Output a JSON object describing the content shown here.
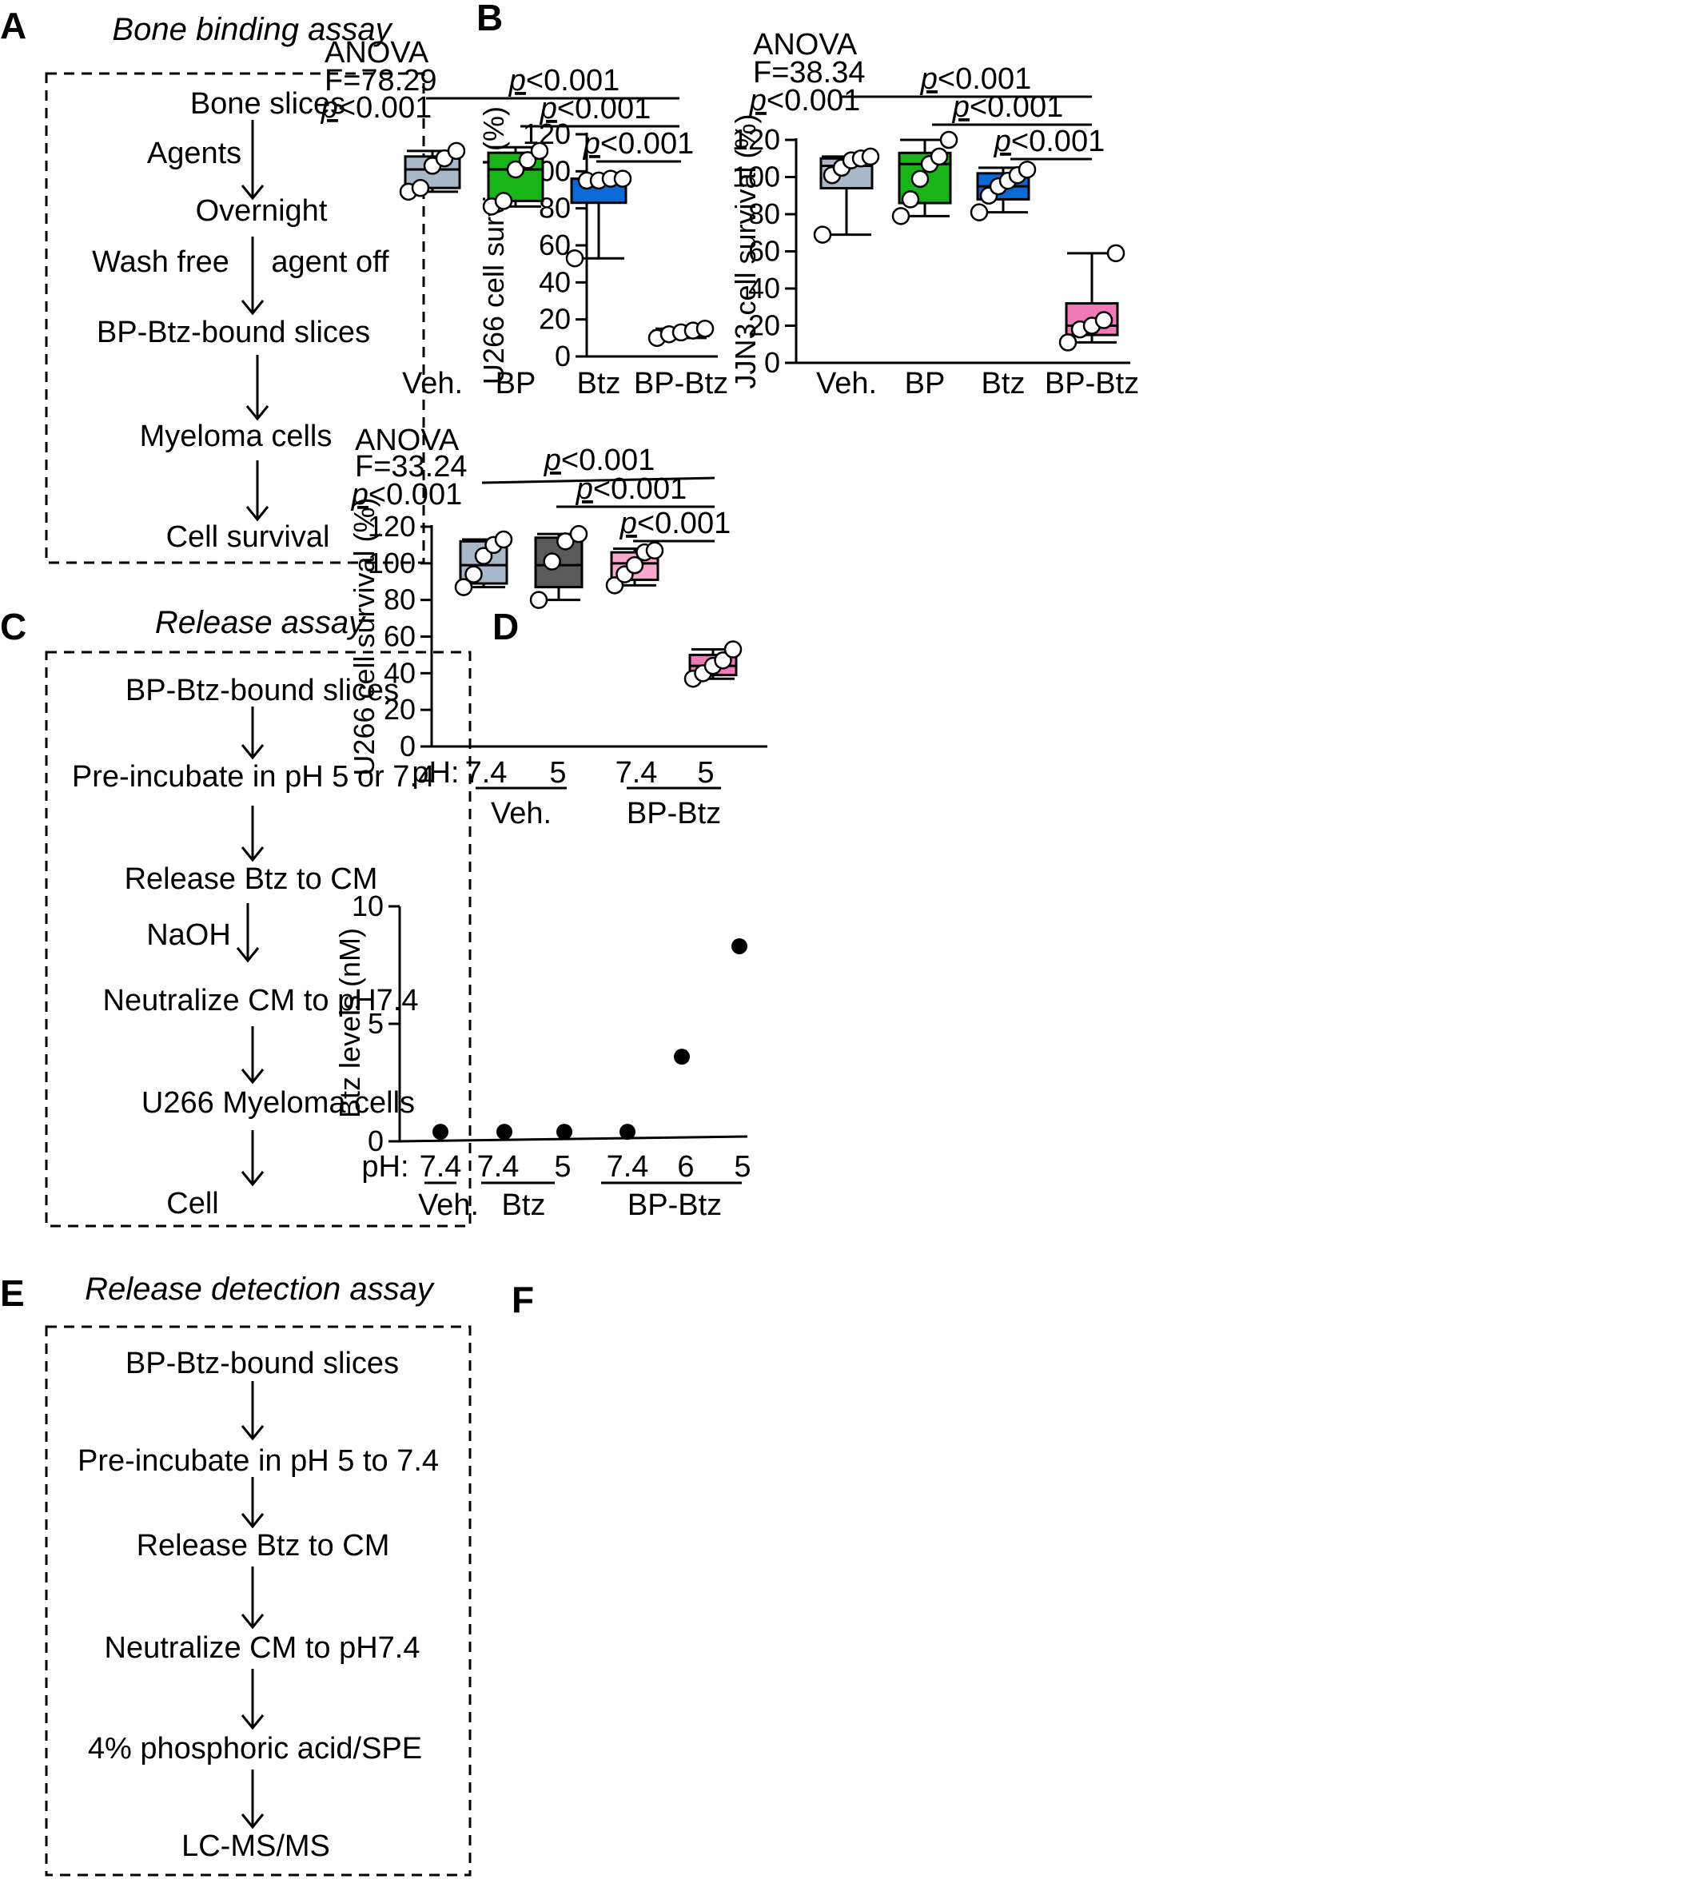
{
  "panels": {
    "A": {
      "letter": "A",
      "title": "Bone binding assay",
      "steps": [
        "Bone slices",
        "Agents",
        "Overnight",
        "Wash free",
        "agent off",
        "BP-Btz-bound slices",
        "Myeloma cells",
        "Cell survival"
      ]
    },
    "C": {
      "letter": "C",
      "title": "Release assay",
      "steps": [
        "BP-Btz-bound slices",
        "Pre-incubate in pH 5 or 7.4",
        "Release Btz to CM",
        "NaOH",
        "Neutralize CM to pH7.4",
        "U266 Myeloma cells",
        "Cell"
      ]
    },
    "E": {
      "letter": "E",
      "title": "Release detection assay",
      "steps": [
        "BP-Btz-bound slices",
        "Pre-incubate in pH 5 to 7.4",
        "Release Btz to CM",
        "Neutralize CM to pH7.4",
        "4% phosphoric acid/SPE",
        "LC-MS/MS"
      ]
    },
    "B": {
      "letter": "B"
    },
    "D": {
      "letter": "D"
    },
    "F": {
      "letter": "F"
    }
  },
  "chart_data": [
    {
      "id": "B-left",
      "type": "box",
      "ylabel": "U266 cell survival (%)",
      "ylim": [
        0,
        120
      ],
      "yticks": [
        0,
        20,
        40,
        60,
        80,
        100,
        120
      ],
      "categories": [
        "Veh.",
        "BP",
        "Btz",
        "BP-Btz"
      ],
      "anova": {
        "label": "ANOVA",
        "F": "F=78.29",
        "p": "<0.001"
      },
      "boxes": [
        {
          "color": "#a9b8c8",
          "min": 89,
          "q1": 91,
          "median": 101,
          "q3": 108,
          "max": 111,
          "points": [
            89,
            91,
            103,
            107,
            111
          ]
        },
        {
          "color": "#18b418",
          "min": 81,
          "q1": 84,
          "median": 101,
          "q3": 110,
          "max": 113,
          "points": [
            81,
            84,
            101,
            106,
            111
          ]
        },
        {
          "color": "#0a6ad8",
          "min": 53,
          "q1": 83,
          "median": 96,
          "q3": 96,
          "max": 96,
          "points": [
            53,
            95,
            95,
            96,
            96
          ]
        },
        {
          "color": "#ffffff",
          "min": 10,
          "q1": 11,
          "median": 13,
          "q3": 14,
          "max": 15,
          "points": [
            10,
            12,
            13,
            14,
            15
          ]
        }
      ],
      "comparisons": [
        {
          "from": 0,
          "to": 3,
          "p": "<0.001"
        },
        {
          "from": 1,
          "to": 3,
          "p": "<0.001"
        },
        {
          "from": 2,
          "to": 3,
          "p": "<0.001"
        }
      ]
    },
    {
      "id": "B-right",
      "type": "box",
      "ylabel": "JJN3 cell survival (%)",
      "ylim": [
        0,
        120
      ],
      "yticks": [
        0,
        20,
        40,
        60,
        80,
        100,
        120
      ],
      "categories": [
        "Veh.",
        "BP",
        "Btz",
        "BP-Btz"
      ],
      "anova": {
        "label": "ANOVA",
        "F": "F=38.34",
        "p": "<0.001"
      },
      "boxes": [
        {
          "color": "#a9b8c8",
          "min": 69,
          "q1": 94,
          "median": 106,
          "q3": 110,
          "max": 111,
          "points": [
            69,
            101,
            105,
            109,
            110,
            111
          ]
        },
        {
          "color": "#18b418",
          "min": 79,
          "q1": 86,
          "median": 107,
          "q3": 113,
          "max": 120,
          "points": [
            79,
            88,
            99,
            107,
            111,
            120
          ]
        },
        {
          "color": "#0a6ad8",
          "min": 81,
          "q1": 88,
          "median": 95,
          "q3": 102,
          "max": 105,
          "points": [
            81,
            90,
            95,
            98,
            101,
            104
          ]
        },
        {
          "color": "#f07ab8",
          "min": 11,
          "q1": 15,
          "median": 20,
          "q3": 32,
          "max": 59,
          "points": [
            11,
            18,
            20,
            23,
            59
          ]
        }
      ],
      "comparisons": [
        {
          "from": 0,
          "to": 3,
          "p": "<0.001"
        },
        {
          "from": 1,
          "to": 3,
          "p": "<0.001"
        },
        {
          "from": 2,
          "to": 3,
          "p": "<0.001"
        }
      ]
    },
    {
      "id": "D",
      "type": "box",
      "ylabel": "U266 cell survival (%)",
      "ylim": [
        0,
        120
      ],
      "yticks": [
        0,
        20,
        40,
        60,
        80,
        100,
        120
      ],
      "ph_label": "pH:",
      "categories": [
        "7.4",
        "5",
        "7.4",
        "5"
      ],
      "groups": [
        {
          "name": "Veh.",
          "from": 0,
          "to": 1
        },
        {
          "name": "BP-Btz",
          "from": 2,
          "to": 3
        }
      ],
      "anova": {
        "label": "ANOVA",
        "F": "F=33.24",
        "p": "<0.001"
      },
      "boxes": [
        {
          "color": "#a9b8c8",
          "min": 87,
          "q1": 89,
          "median": 99,
          "q3": 112,
          "max": 113,
          "points": [
            87,
            94,
            104,
            110,
            113
          ]
        },
        {
          "color": "#5a5a5a",
          "min": 80,
          "q1": 87,
          "median": 99,
          "q3": 114,
          "max": 116,
          "points": [
            80,
            101,
            112,
            116
          ]
        },
        {
          "color": "#f7a8cc",
          "min": 88,
          "q1": 91,
          "median": 100,
          "q3": 106,
          "max": 108,
          "points": [
            88,
            94,
            99,
            106,
            107
          ]
        },
        {
          "color": "#f07ab8",
          "min": 37,
          "q1": 39,
          "median": 44,
          "q3": 50,
          "max": 53,
          "points": [
            37,
            40,
            44,
            47,
            53
          ]
        }
      ],
      "comparisons": [
        {
          "from": 0,
          "to": 3,
          "p": "<0.001"
        },
        {
          "from": 1,
          "to": 3,
          "p": "<0.001"
        },
        {
          "from": 2,
          "to": 3,
          "p": "<0.001"
        }
      ]
    },
    {
      "id": "F",
      "type": "scatter",
      "ylabel": "Btz levels (nM)",
      "ylim": [
        0,
        10
      ],
      "yticks": [
        0,
        5,
        10
      ],
      "ph_label": "pH:",
      "categories": [
        "7.4",
        "7.4",
        "5",
        "7.4",
        "6",
        "5"
      ],
      "values": [
        0.2,
        0.2,
        0.2,
        0.2,
        3.6,
        8.3
      ],
      "groups": [
        {
          "name": "Veh.",
          "from": 0,
          "to": 0
        },
        {
          "name": "Btz",
          "from": 1,
          "to": 2
        },
        {
          "name": "BP-Btz",
          "from": 3,
          "to": 5
        }
      ]
    }
  ]
}
